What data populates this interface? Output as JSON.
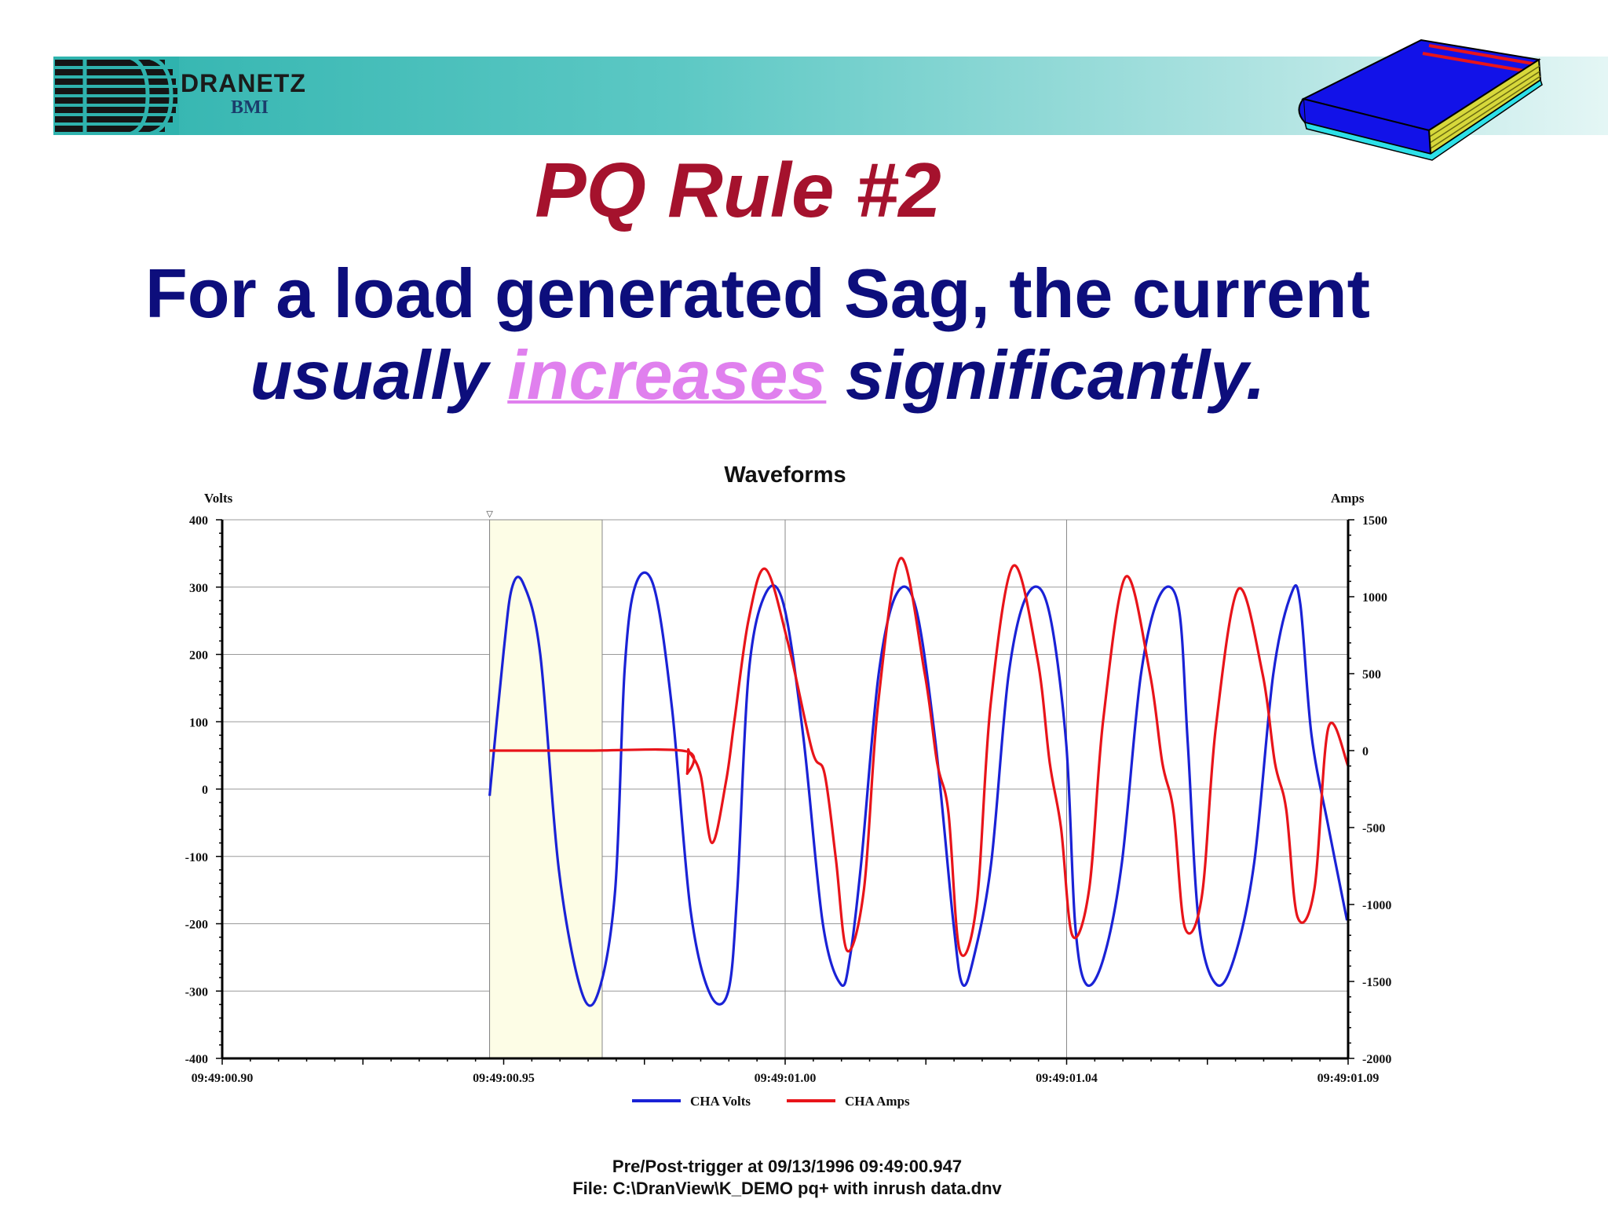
{
  "logo": {
    "brand_line1": "DRANETZ",
    "brand_line2": "BMI"
  },
  "icons": {
    "logo": "dranetz-logo-icon",
    "book": "book-icon"
  },
  "colors": {
    "title": "#a5122d",
    "statement": "#0d0e7c",
    "highlight": "#e080ee",
    "volts": "#1a22d6",
    "amps": "#e8141a",
    "trigger_band": "#fdfde6"
  },
  "slide": {
    "title": "PQ Rule #2",
    "statement": {
      "part1": "For a load generated Sag, the current",
      "part2": "usually",
      "highlight": "increases",
      "part3": "significantly."
    }
  },
  "chart_data": {
    "type": "line",
    "title": "Waveforms",
    "ylabel_left": "Volts",
    "ylabel_right": "Amps",
    "x_ticks": [
      "09:49:00.90",
      "09:49:00.95",
      "09:49:01.00",
      "09:49:01.04",
      "09:49:01.09"
    ],
    "xlim_ms": [
      0,
      200
    ],
    "ylim_left": [
      -400,
      400
    ],
    "ylim_right": [
      -2000,
      1500
    ],
    "y_ticks_left": [
      400,
      300,
      200,
      100,
      0,
      -100,
      -200,
      -300,
      -400
    ],
    "y_ticks_right": [
      1500,
      1000,
      500,
      0,
      -500,
      -1000,
      -1500,
      -2000
    ],
    "trigger_marker": "▽",
    "trigger_band_ms": [
      47.5,
      67.5
    ],
    "grid": true,
    "legend_position": "bottom",
    "series": [
      {
        "name": "CHA Volts",
        "axis": "left",
        "x_ms": [
          47.5,
          50,
          51.5,
          53.5,
          56.5,
          59.8,
          63.8,
          66.8,
          69.8,
          71.5,
          73.5,
          76.7,
          79.9,
          83.2,
          86.7,
          89.9,
          91.5,
          93.5,
          96.5,
          99.7,
          103.2,
          106.7,
          109.9,
          111.5,
          113.5,
          116.6,
          119.8,
          123.2,
          126.7,
          129.9,
          131.5,
          133.5,
          136.6,
          139.7,
          143.1,
          146.7,
          149.9,
          151.5,
          153.5,
          156.6,
          159.8,
          163.2,
          166.7,
          169.9,
          171.5,
          173.5,
          176.6,
          179.8,
          183.3,
          186.7,
          189.9,
          191.5,
          193.5,
          196.6,
          199.8
        ],
        "values": [
          -10,
          205,
          300,
          305,
          200,
          -120,
          -300,
          -302,
          -150,
          180,
          305,
          300,
          120,
          -180,
          -305,
          -300,
          -150,
          170,
          290,
          275,
          80,
          -200,
          -290,
          -250,
          -110,
          170,
          290,
          270,
          70,
          -200,
          -290,
          -250,
          -110,
          170,
          290,
          270,
          70,
          -200,
          -290,
          -250,
          -110,
          170,
          290,
          270,
          70,
          -200,
          -290,
          -250,
          -110,
          170,
          290,
          275,
          80,
          -60,
          -195
        ]
      },
      {
        "name": "CHA Amps",
        "axis": "right",
        "x_ms": [
          47.5,
          55,
          65,
          82.5,
          82.6,
          82.8,
          83,
          85,
          87,
          89.5,
          91,
          93.5,
          96.5,
          100.5,
          104.8,
          107,
          109,
          111,
          114,
          116.5,
          120.5,
          124.8,
          127,
          129,
          131,
          134,
          136.5,
          140.5,
          144.8,
          147,
          149,
          151,
          154,
          156.5,
          160.5,
          164.8,
          167,
          169,
          171,
          174,
          176.5,
          180.5,
          184.8,
          187,
          189,
          191,
          194,
          196.5,
          200
        ],
        "values": [
          0,
          0,
          0,
          -5,
          -150,
          -10,
          -10,
          -160,
          -600,
          -200,
          200,
          850,
          1180,
          700,
          0,
          -150,
          -700,
          -1300,
          -900,
          300,
          1250,
          500,
          -80,
          -400,
          -1300,
          -1000,
          300,
          1200,
          600,
          -80,
          -500,
          -1200,
          -900,
          200,
          1130,
          500,
          -80,
          -400,
          -1150,
          -950,
          150,
          1050,
          500,
          -80,
          -380,
          -1080,
          -900,
          150,
          -100
        ]
      }
    ]
  },
  "footer": {
    "line1": "Pre/Post-trigger at 09/13/1996 09:49:00.947",
    "line2": "File: C:\\DranView\\K_DEMO pq+ with inrush data.dnv"
  }
}
